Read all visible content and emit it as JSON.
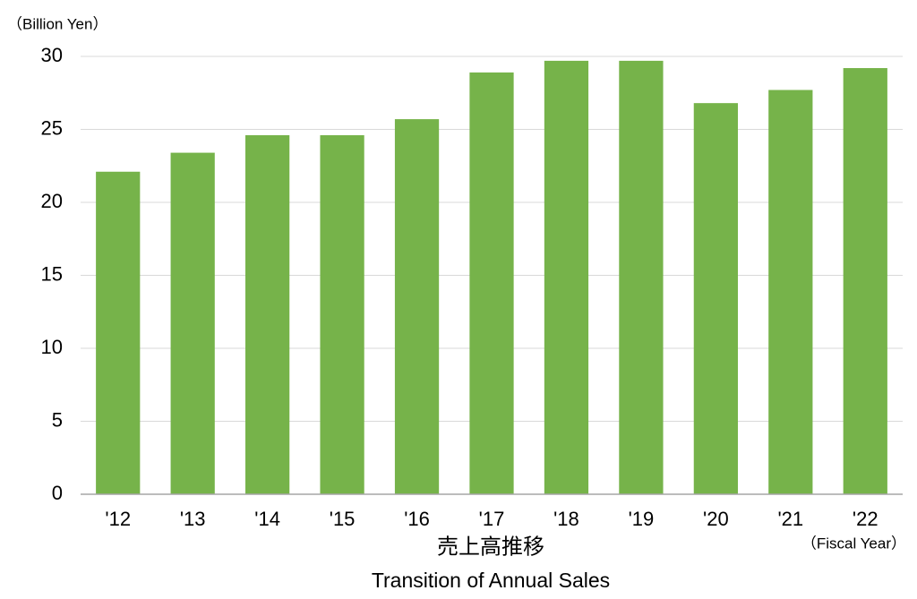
{
  "chart_data": {
    "type": "bar",
    "title": "売上高推移",
    "subtitle": "Transition of Annual Sales",
    "y_axis_label": "（Billion Yen）",
    "x_axis_label": "（Fiscal Year）",
    "categories": [
      "'12",
      "'13",
      "'14",
      "'15",
      "'16",
      "'17",
      "'18",
      "'19",
      "'20",
      "'21",
      "'22"
    ],
    "values": [
      22.1,
      23.4,
      24.6,
      24.6,
      25.7,
      28.9,
      29.7,
      29.7,
      26.8,
      27.7,
      29.2
    ],
    "color": "#76b34a",
    "ylim": [
      0,
      30
    ],
    "yticks": [
      0,
      5,
      10,
      15,
      20,
      25,
      30
    ],
    "grid": true
  }
}
